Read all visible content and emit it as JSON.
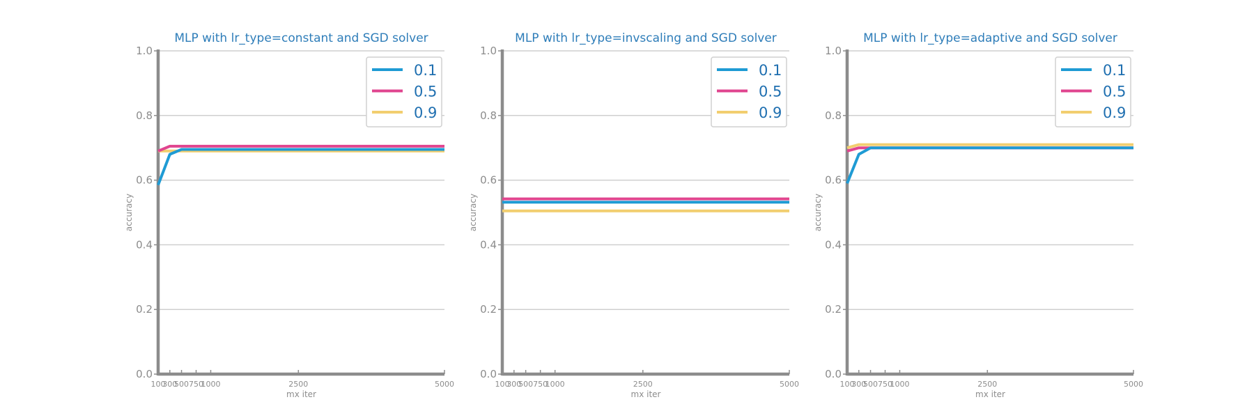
{
  "chart_data": [
    {
      "type": "line",
      "title": "MLP with lr_type=constant and SGD solver",
      "xlabel": "mx iter",
      "ylabel": "accuracy",
      "x": [
        100,
        300,
        500,
        750,
        1000,
        2500,
        5000
      ],
      "xticks": [
        "100",
        "300",
        "500",
        "750",
        "1000",
        "2500",
        "5000"
      ],
      "xlim": [
        100,
        5000
      ],
      "ylim": [
        0.0,
        1.0
      ],
      "yticks": [
        "0.0",
        "0.2",
        "0.4",
        "0.6",
        "0.8",
        "1.0"
      ],
      "grid": "horizontal",
      "legend_position": "top-right",
      "series": [
        {
          "name": "0.1",
          "color": "#1f9bd4",
          "values": [
            0.585,
            0.68,
            0.695,
            0.695,
            0.695,
            0.695,
            0.695
          ]
        },
        {
          "name": "0.5",
          "color": "#e0458f",
          "values": [
            0.69,
            0.705,
            0.705,
            0.705,
            0.705,
            0.705,
            0.705
          ]
        },
        {
          "name": "0.9",
          "color": "#f2ce6f",
          "values": [
            0.69,
            0.69,
            0.69,
            0.69,
            0.69,
            0.69,
            0.69
          ]
        }
      ]
    },
    {
      "type": "line",
      "title": "MLP with lr_type=invscaling and SGD solver",
      "xlabel": "mx iter",
      "ylabel": "accuracy",
      "x": [
        100,
        300,
        500,
        750,
        1000,
        2500,
        5000
      ],
      "xticks": [
        "100",
        "300",
        "500",
        "750",
        "1000",
        "2500",
        "5000"
      ],
      "xlim": [
        100,
        5000
      ],
      "ylim": [
        0.0,
        1.0
      ],
      "yticks": [
        "0.0",
        "0.2",
        "0.4",
        "0.6",
        "0.8",
        "1.0"
      ],
      "grid": "horizontal",
      "legend_position": "top-right",
      "series": [
        {
          "name": "0.1",
          "color": "#1f9bd4",
          "values": [
            0.532,
            0.532,
            0.532,
            0.532,
            0.532,
            0.532,
            0.532
          ]
        },
        {
          "name": "0.5",
          "color": "#e0458f",
          "values": [
            0.542,
            0.542,
            0.542,
            0.542,
            0.542,
            0.542,
            0.542
          ]
        },
        {
          "name": "0.9",
          "color": "#f2ce6f",
          "values": [
            0.505,
            0.505,
            0.505,
            0.505,
            0.505,
            0.505,
            0.505
          ]
        }
      ]
    },
    {
      "type": "line",
      "title": "MLP with lr_type=adaptive and SGD solver",
      "xlabel": "mx iter",
      "ylabel": "accuracy",
      "x": [
        100,
        300,
        500,
        750,
        1000,
        2500,
        5000
      ],
      "xticks": [
        "100",
        "300",
        "500",
        "750",
        "1000",
        "2500",
        "5000"
      ],
      "xlim": [
        100,
        5000
      ],
      "ylim": [
        0.0,
        1.0
      ],
      "yticks": [
        "0.0",
        "0.2",
        "0.4",
        "0.6",
        "0.8",
        "1.0"
      ],
      "grid": "horizontal",
      "legend_position": "top-right",
      "series": [
        {
          "name": "0.1",
          "color": "#1f9bd4",
          "values": [
            0.59,
            0.68,
            0.7,
            0.7,
            0.7,
            0.7,
            0.7
          ]
        },
        {
          "name": "0.5",
          "color": "#e0458f",
          "values": [
            0.69,
            0.7,
            0.7,
            0.7,
            0.7,
            0.7,
            0.7
          ]
        },
        {
          "name": "0.9",
          "color": "#f2ce6f",
          "values": [
            0.7,
            0.71,
            0.71,
            0.71,
            0.71,
            0.71,
            0.71
          ]
        }
      ]
    }
  ]
}
